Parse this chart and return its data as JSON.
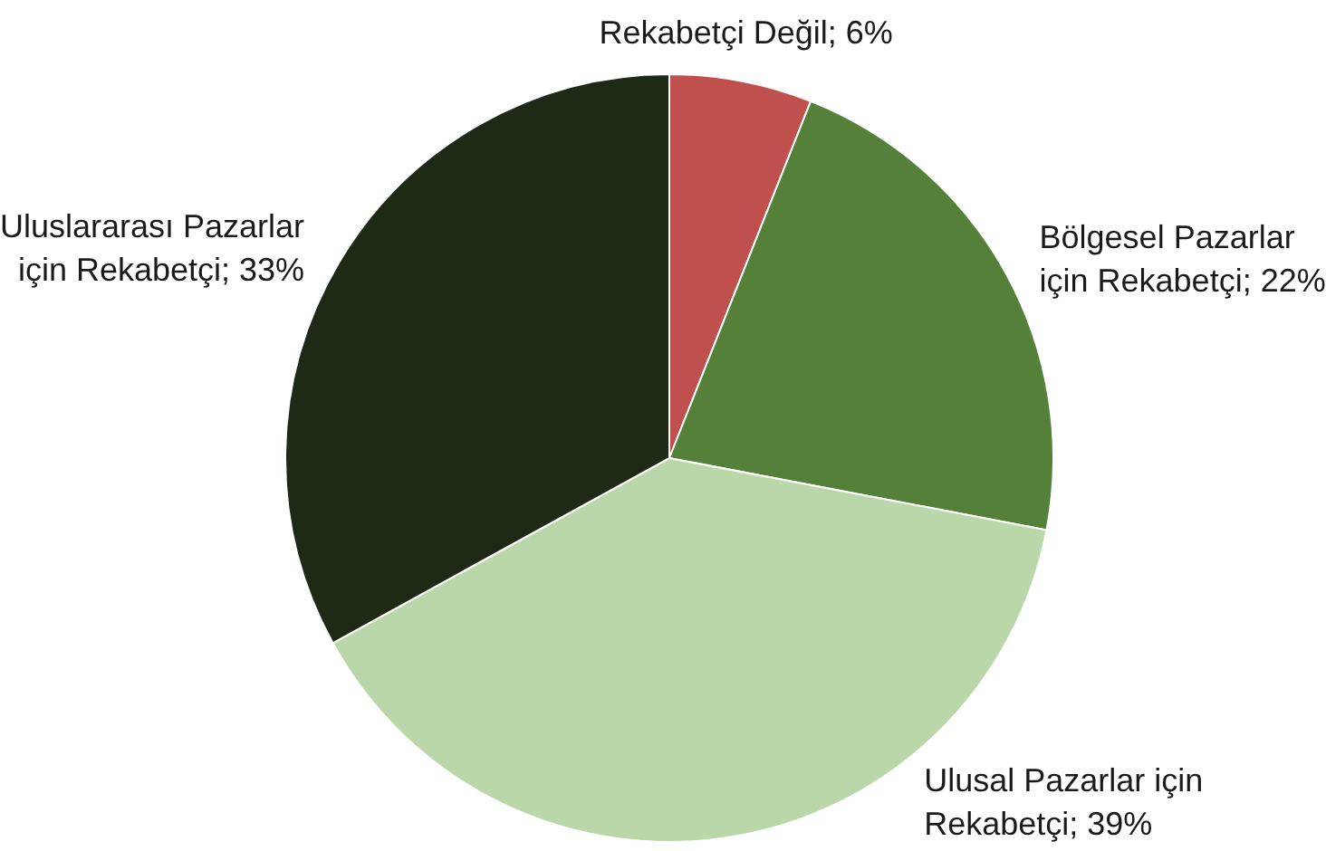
{
  "chart_data": {
    "type": "pie",
    "categories": [
      "Rekabetçi Değil",
      "Bölgesel Pazarlar için Rekabetçi",
      "Ulusal Pazarlar için Rekabetçi",
      "Uluslararası Pazarlar için Rekabetçi"
    ],
    "values": [
      6,
      22,
      39,
      33
    ],
    "value_labels": [
      "6%",
      "22%",
      "39%",
      "33%"
    ],
    "colors": [
      "#c0504d",
      "#548039",
      "#bad7a9",
      "#1e2a15"
    ],
    "data_labels": true,
    "legend": false
  }
}
